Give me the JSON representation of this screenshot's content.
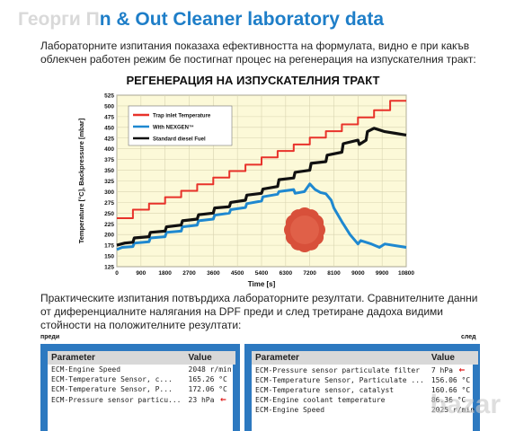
{
  "header": {
    "watermark": "Георги П",
    "title": "n & Out Cleaner laboratory data"
  },
  "intro": "Лабораторните изпитания показаха ефективността на формулата, видно е при какъв облекчен работен режим бе постигнат процес на регенерация на изпускателния тракт:",
  "chart_data": {
    "type": "line",
    "title": "РЕГЕНЕРАЦИЯ НА ИЗПУСКАТЕЛНИЯ ТРАКТ",
    "xlabel": "Time [s]",
    "ylabel": "Temperature [°C], Backpressure [mbar]",
    "x_ticks": [
      0,
      900,
      1800,
      2700,
      3600,
      4500,
      5400,
      6300,
      7200,
      8100,
      9000,
      9900,
      10800
    ],
    "y_ticks": [
      125,
      150,
      175,
      200,
      225,
      250,
      275,
      300,
      325,
      350,
      375,
      400,
      425,
      450,
      475,
      500,
      525
    ],
    "xlim": [
      0,
      10800
    ],
    "ylim": [
      125,
      525
    ],
    "grid": true,
    "legend_position": "top-left",
    "series": [
      {
        "name": "Trap inlet Temperature",
        "color": "#e8322a",
        "points": [
          [
            0,
            238
          ],
          [
            600,
            238
          ],
          [
            600,
            258
          ],
          [
            1200,
            258
          ],
          [
            1200,
            272
          ],
          [
            1800,
            272
          ],
          [
            1800,
            287
          ],
          [
            2400,
            287
          ],
          [
            2400,
            302
          ],
          [
            3000,
            302
          ],
          [
            3000,
            317
          ],
          [
            3600,
            317
          ],
          [
            3600,
            333
          ],
          [
            4200,
            333
          ],
          [
            4200,
            348
          ],
          [
            4800,
            348
          ],
          [
            4800,
            363
          ],
          [
            5400,
            363
          ],
          [
            5400,
            380
          ],
          [
            6000,
            380
          ],
          [
            6000,
            395
          ],
          [
            6600,
            395
          ],
          [
            6600,
            410
          ],
          [
            7200,
            410
          ],
          [
            7200,
            426
          ],
          [
            7800,
            426
          ],
          [
            7800,
            441
          ],
          [
            8400,
            441
          ],
          [
            8400,
            457
          ],
          [
            9000,
            457
          ],
          [
            9000,
            473
          ],
          [
            9600,
            473
          ],
          [
            9600,
            490
          ],
          [
            10200,
            490
          ],
          [
            10200,
            512
          ],
          [
            10800,
            512
          ]
        ]
      },
      {
        "name": "With NEXGEN™",
        "color": "#1e88d0",
        "points": [
          [
            0,
            165
          ],
          [
            200,
            170
          ],
          [
            600,
            172
          ],
          [
            650,
            180
          ],
          [
            1200,
            183
          ],
          [
            1250,
            192
          ],
          [
            1800,
            195
          ],
          [
            1850,
            205
          ],
          [
            2400,
            208
          ],
          [
            2450,
            218
          ],
          [
            3000,
            222
          ],
          [
            3050,
            232
          ],
          [
            3600,
            236
          ],
          [
            3650,
            245
          ],
          [
            4200,
            250
          ],
          [
            4250,
            258
          ],
          [
            4800,
            263
          ],
          [
            4850,
            272
          ],
          [
            5400,
            278
          ],
          [
            5450,
            288
          ],
          [
            6000,
            294
          ],
          [
            6050,
            300
          ],
          [
            6600,
            305
          ],
          [
            6650,
            296
          ],
          [
            7000,
            300
          ],
          [
            7200,
            318
          ],
          [
            7400,
            305
          ],
          [
            7600,
            298
          ],
          [
            7800,
            295
          ],
          [
            8000,
            280
          ],
          [
            8100,
            262
          ],
          [
            8400,
            230
          ],
          [
            8700,
            200
          ],
          [
            9000,
            178
          ],
          [
            9100,
            186
          ],
          [
            9500,
            178
          ],
          [
            9800,
            170
          ],
          [
            10000,
            178
          ],
          [
            10400,
            174
          ],
          [
            10800,
            170
          ]
        ]
      },
      {
        "name": "Standard diesel Fuel",
        "color": "#111111",
        "points": [
          [
            0,
            175
          ],
          [
            300,
            180
          ],
          [
            600,
            182
          ],
          [
            650,
            192
          ],
          [
            1200,
            195
          ],
          [
            1250,
            205
          ],
          [
            1800,
            208
          ],
          [
            1850,
            218
          ],
          [
            2400,
            222
          ],
          [
            2450,
            232
          ],
          [
            3000,
            236
          ],
          [
            3050,
            246
          ],
          [
            3600,
            250
          ],
          [
            3650,
            262
          ],
          [
            4200,
            265
          ],
          [
            4250,
            275
          ],
          [
            4800,
            280
          ],
          [
            4850,
            292
          ],
          [
            5400,
            296
          ],
          [
            5450,
            306
          ],
          [
            6000,
            312
          ],
          [
            6050,
            328
          ],
          [
            6600,
            332
          ],
          [
            6650,
            345
          ],
          [
            7200,
            350
          ],
          [
            7250,
            366
          ],
          [
            7800,
            370
          ],
          [
            7850,
            385
          ],
          [
            8400,
            392
          ],
          [
            8450,
            412
          ],
          [
            9000,
            420
          ],
          [
            9050,
            410
          ],
          [
            9300,
            420
          ],
          [
            9350,
            440
          ],
          [
            9600,
            448
          ],
          [
            10000,
            440
          ],
          [
            10400,
            436
          ],
          [
            10800,
            432
          ]
        ]
      }
    ]
  },
  "paragraph2": "Практическите изпитания потвърдиха лабораторните резултати. Сравнителните данни от диференциалните налягания на DPF преди и след третиране дадоха видими стойности на положителните резултати:",
  "before": {
    "label": "преди",
    "col_param": "Parameter",
    "col_value": "Value",
    "rows": [
      {
        "param": "ECM-Engine Speed",
        "value": "2048 r/min"
      },
      {
        "param": "ECM-Temperature Sensor, c...",
        "value": "165.26 °C"
      },
      {
        "param": "ECM-Temperature Sensor, P...",
        "value": "172.06 °C"
      },
      {
        "param": "ECM-Pressure sensor particu...",
        "value": "23 hPa"
      }
    ]
  },
  "after": {
    "label": "след",
    "col_param": "Parameter",
    "col_value": "Value",
    "rows": [
      {
        "param": "ECM-Pressure sensor particulate filter",
        "value": "7 hPa"
      },
      {
        "param": "ECM-Temperature Sensor, Particulate ...",
        "value": "156.06 °C"
      },
      {
        "param": "ECM-Temperature sensor, catalyst",
        "value": "160.66 °C"
      },
      {
        "param": "ECM-Engine coolant temperature",
        "value": "86.36 °C"
      },
      {
        "param": "ECM-Engine Speed",
        "value": "2025 r/min"
      }
    ]
  },
  "watermark_logo": "bazar"
}
